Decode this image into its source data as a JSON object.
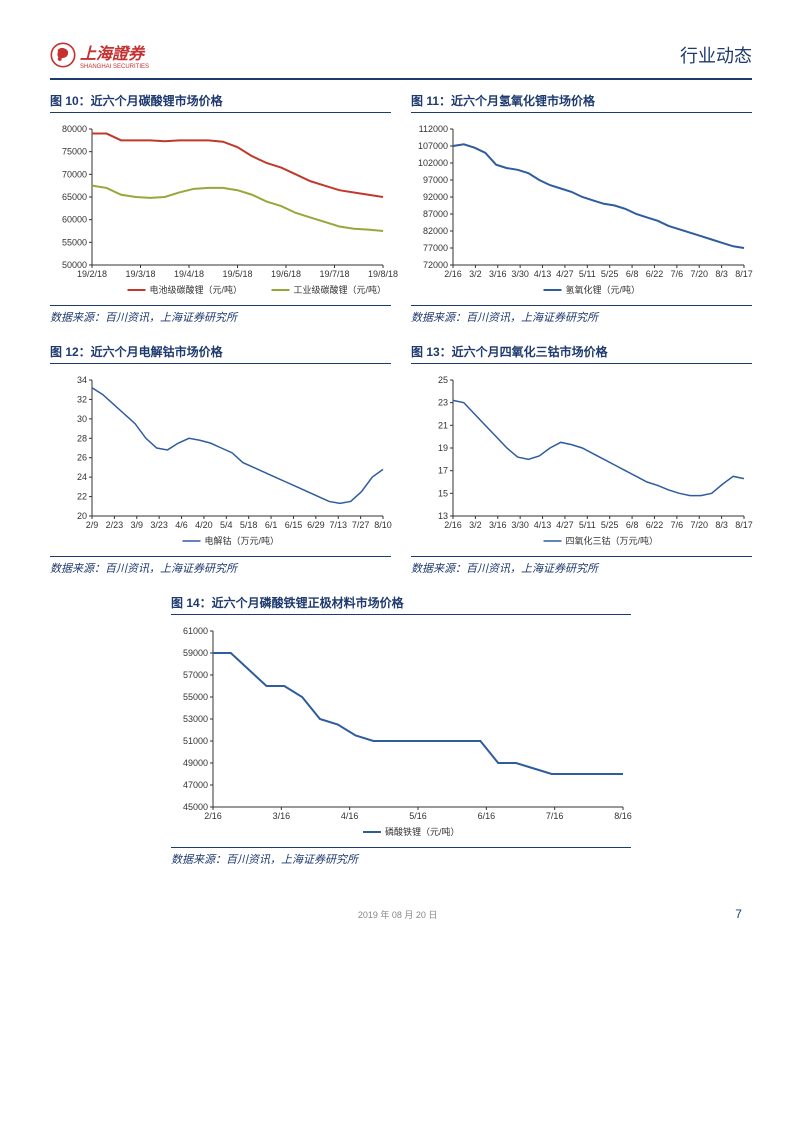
{
  "header": {
    "logo_text": "上海證券",
    "logo_sub": "SHANGHAI SECURITIES",
    "title": "行业动态"
  },
  "footer": {
    "date": "2019 年 08 月 20 日",
    "page": "7"
  },
  "chart10": {
    "type": "line",
    "title": "图 10：近六个月碳酸锂市场价格",
    "source": "数据来源：百川资讯，上海证券研究所",
    "x_labels": [
      "19/2/18",
      "19/3/18",
      "19/4/18",
      "19/5/18",
      "19/6/18",
      "19/7/18",
      "19/8/18"
    ],
    "ylim": [
      50000,
      80000
    ],
    "ytick_step": 5000,
    "series": [
      {
        "name": "电池级碳酸锂（元/吨）",
        "color": "#c0392b",
        "width": 2,
        "values": [
          79000,
          79000,
          77500,
          77500,
          77500,
          77300,
          77500,
          77500,
          77500,
          77200,
          76000,
          74000,
          72500,
          71500,
          70000,
          68500,
          67500,
          66500,
          66000,
          65500,
          65000
        ]
      },
      {
        "name": "工业级碳酸锂（元/吨）",
        "color": "#97a83a",
        "width": 2,
        "values": [
          67500,
          67000,
          65500,
          65000,
          64800,
          65000,
          66000,
          66800,
          67000,
          67000,
          66500,
          65500,
          64000,
          63000,
          61500,
          60500,
          59500,
          58500,
          58000,
          57800,
          57500
        ]
      }
    ]
  },
  "chart11": {
    "type": "line",
    "title": "图 11：近六个月氢氧化锂市场价格",
    "source": "数据来源：百川资讯，上海证券研究所",
    "x_labels": [
      "2/16",
      "3/2",
      "3/16",
      "3/30",
      "4/13",
      "4/27",
      "5/11",
      "5/25",
      "6/8",
      "6/22",
      "7/6",
      "7/20",
      "8/3",
      "8/17"
    ],
    "ylim": [
      72000,
      112000
    ],
    "ytick_step": 5000,
    "series": [
      {
        "name": "氢氧化锂（元/吨）",
        "color": "#2e5c9e",
        "width": 2,
        "values": [
          107000,
          107500,
          106500,
          105000,
          101500,
          100500,
          100000,
          99000,
          97000,
          95500,
          94500,
          93500,
          92000,
          91000,
          90000,
          89500,
          88500,
          87000,
          86000,
          85000,
          83500,
          82500,
          81500,
          80500,
          79500,
          78500,
          77500,
          77000
        ]
      }
    ]
  },
  "chart12": {
    "type": "line",
    "title": "图 12：近六个月电解钴市场价格",
    "source": "数据来源：百川资讯，上海证券研究所",
    "x_labels": [
      "2/9",
      "2/23",
      "3/9",
      "3/23",
      "4/6",
      "4/20",
      "5/4",
      "5/18",
      "6/1",
      "6/15",
      "6/29",
      "7/13",
      "7/27",
      "8/10"
    ],
    "ylim": [
      20,
      34
    ],
    "ytick_step": 2,
    "series": [
      {
        "name": "电解钴（万元/吨）",
        "color": "#2e5c9e",
        "width": 1.5,
        "values": [
          33.2,
          32.5,
          31.5,
          30.5,
          29.5,
          28,
          27,
          26.8,
          27.5,
          28,
          27.8,
          27.5,
          27,
          26.5,
          25.5,
          25,
          24.5,
          24,
          23.5,
          23,
          22.5,
          22,
          21.5,
          21.3,
          21.5,
          22.5,
          24,
          24.8
        ]
      }
    ]
  },
  "chart13": {
    "type": "line",
    "title": "图 13：近六个月四氧化三钴市场价格",
    "source": "数据来源：百川资讯，上海证券研究所",
    "x_labels": [
      "2/16",
      "3/2",
      "3/16",
      "3/30",
      "4/13",
      "4/27",
      "5/11",
      "5/25",
      "6/8",
      "6/22",
      "7/6",
      "7/20",
      "8/3",
      "8/17"
    ],
    "ylim": [
      13,
      25
    ],
    "ytick_step": 2,
    "series": [
      {
        "name": "四氧化三钴（万元/吨）",
        "color": "#2e5c9e",
        "width": 1.5,
        "values": [
          23.2,
          23,
          22,
          21,
          20,
          19,
          18.2,
          18,
          18.3,
          19,
          19.5,
          19.3,
          19,
          18.5,
          18,
          17.5,
          17,
          16.5,
          16,
          15.7,
          15.3,
          15,
          14.8,
          14.8,
          15,
          15.8,
          16.5,
          16.3
        ]
      }
    ]
  },
  "chart14": {
    "type": "line",
    "title": "图 14：近六个月磷酸铁锂正极材料市场价格",
    "source": "数据来源：百川资讯，上海证券研究所",
    "x_labels": [
      "2/16",
      "3/16",
      "4/16",
      "5/16",
      "6/16",
      "7/16",
      "8/16"
    ],
    "ylim": [
      45000,
      61000
    ],
    "ytick_step": 2000,
    "series": [
      {
        "name": "磷酸铁锂（元/吨）",
        "color": "#2e5c9e",
        "width": 2,
        "values": [
          59000,
          59000,
          57500,
          56000,
          56000,
          55000,
          53000,
          52500,
          51500,
          51000,
          51000,
          51000,
          51000,
          51000,
          51000,
          51000,
          49000,
          49000,
          48500,
          48000,
          48000,
          48000,
          48000,
          48000
        ]
      }
    ]
  }
}
